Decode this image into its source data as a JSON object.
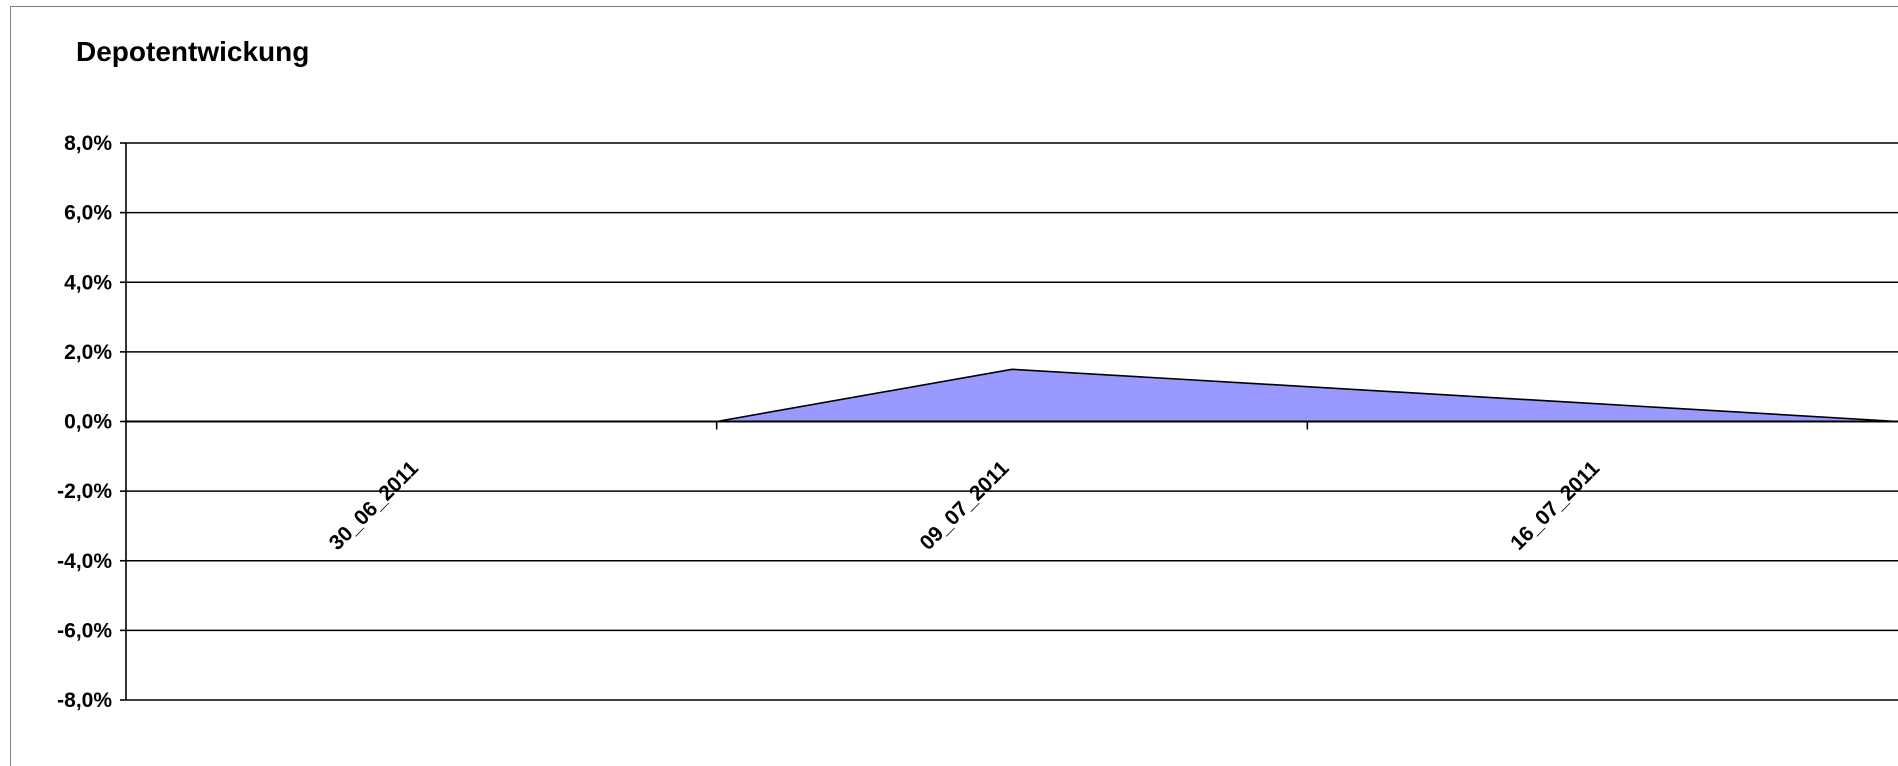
{
  "chart_data": {
    "type": "area",
    "title": "Depotentwickung",
    "xlabel": "",
    "ylabel": "",
    "categories": [
      "30_06_2011",
      "09_07_2011",
      "16_07_2011"
    ],
    "x": [
      "",
      "30_06_2011",
      "",
      "09_07_2011",
      "",
      "16_07_2011",
      ""
    ],
    "series": [
      {
        "values": [
          0.0,
          0.0,
          0.0,
          1.5,
          1.0,
          0.5,
          0.0
        ],
        "color": "#9999ff"
      }
    ],
    "yticks": [
      "8,0%",
      "6,0%",
      "4,0%",
      "2,0%",
      "0,0%",
      "-2,0%",
      "-4,0%",
      "-6,0%",
      "-8,0%"
    ],
    "ylim": [
      -8,
      8
    ],
    "grid": true,
    "legend": "none"
  }
}
